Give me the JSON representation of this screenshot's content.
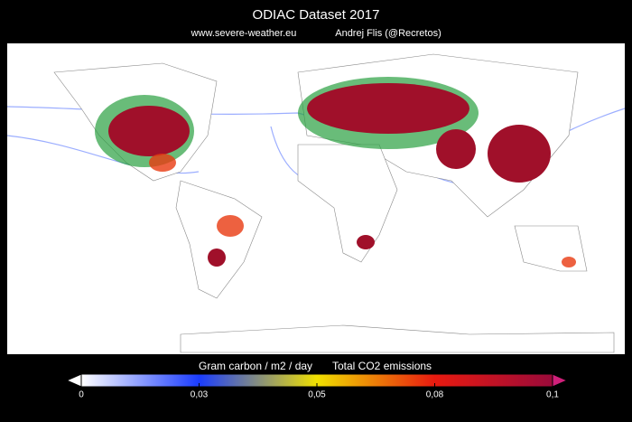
{
  "header": {
    "title": "ODIAC Dataset  2017",
    "website": "www.severe-weather.eu",
    "author": "Andrej Flis (@Recretos)"
  },
  "colorbar": {
    "label": "Gram carbon / m2 / day",
    "title": "Total CO2 emissions",
    "lim": [
      0,
      {
        "value": 0.1,
        "label": "0,1"
      }
    ],
    "ticks": [
      0,
      {
        "value": 0.03,
        "label": "0,03"
      },
      {
        "value": 0.05,
        "label": "0,05"
      },
      {
        "value": 0.08,
        "label": "0,08"
      },
      {
        "value": 0.1,
        "label": "0,1"
      }
    ],
    "colors": [
      "#ffffff",
      "#1a3cff",
      "#f0e000",
      "#e81a10",
      "#9a0a3a"
    ]
  }
}
